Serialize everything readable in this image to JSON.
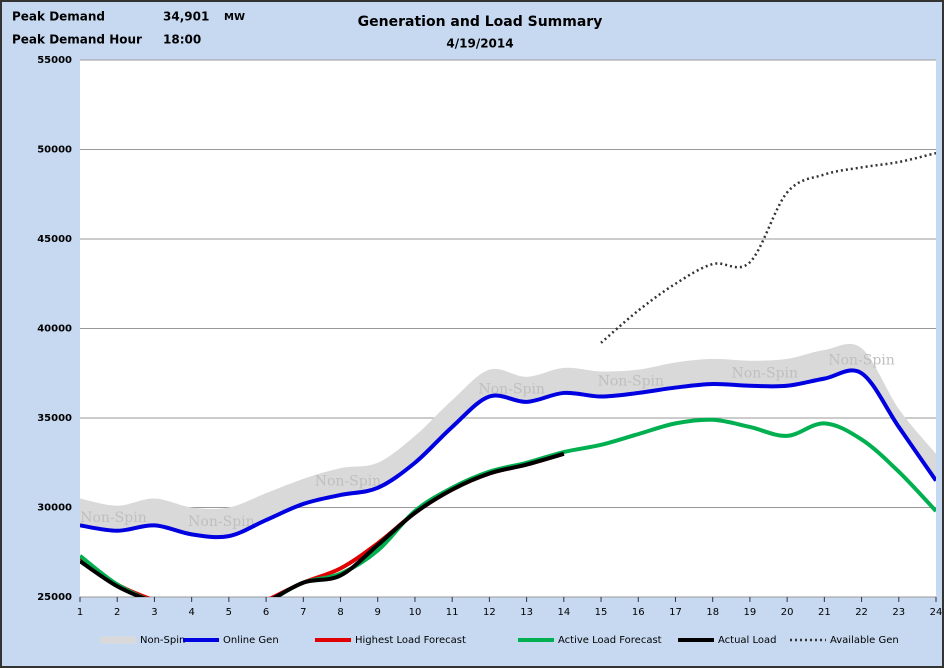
{
  "header": {
    "peak_demand_label": "Peak Demand",
    "peak_demand_value": "34,901",
    "peak_demand_unit": "MW",
    "peak_hour_label": "Peak Demand Hour",
    "peak_hour_value": "18:00"
  },
  "chart_data": {
    "type": "line",
    "title": "Generation and Load Summary",
    "subtitle": "4/19/2014",
    "x": [
      1,
      2,
      3,
      4,
      5,
      6,
      7,
      8,
      9,
      10,
      11,
      12,
      13,
      14,
      15,
      16,
      17,
      18,
      19,
      20,
      21,
      22,
      23,
      24
    ],
    "xlim": [
      1,
      24
    ],
    "xticks": [
      1,
      2,
      3,
      4,
      5,
      6,
      7,
      8,
      9,
      10,
      11,
      12,
      13,
      14,
      15,
      16,
      17,
      18,
      19,
      20,
      21,
      22,
      23,
      24
    ],
    "ylim": [
      25000,
      55000
    ],
    "yticks": [
      25000,
      30000,
      35000,
      40000,
      45000,
      50000,
      55000
    ],
    "grid": true,
    "legend": "bottom",
    "series": [
      {
        "name": "Non-Spin",
        "color": "#d9d9d9",
        "values": [
          30500,
          30100,
          30500,
          30000,
          30000,
          30800,
          31600,
          32200,
          32500,
          34000,
          36000,
          37700,
          37300,
          37800,
          37600,
          37700,
          38100,
          38300,
          38200,
          38300,
          38800,
          38900,
          35500,
          33000
        ]
      },
      {
        "name": "Online Gen",
        "color": "#0000e0",
        "values": [
          29000,
          28700,
          29000,
          28500,
          28400,
          29300,
          30200,
          30700,
          31100,
          32500,
          34500,
          36200,
          35900,
          36400,
          36200,
          36400,
          36700,
          36900,
          36800,
          36800,
          37200,
          37500,
          34500,
          31500
        ]
      },
      {
        "name": "Highest Load Forecast",
        "color": "#e00000",
        "values": [
          27200,
          25700,
          24800,
          24000,
          23800,
          24800,
          25800,
          26600,
          28000,
          29700,
          31000,
          31900,
          32400,
          33000,
          null,
          null,
          null,
          null,
          null,
          null,
          null,
          null,
          null,
          null
        ]
      },
      {
        "name": "Active Load Forecast",
        "color": "#00b050",
        "values": [
          27300,
          25700,
          24700,
          24000,
          23800,
          24700,
          25800,
          26300,
          27600,
          29800,
          31100,
          32000,
          32500,
          33100,
          33500,
          34100,
          34700,
          34900,
          34500,
          34000,
          34700,
          33800,
          32000,
          29800
        ]
      },
      {
        "name": "Actual Load",
        "color": "#000000",
        "values": [
          27000,
          25600,
          24700,
          24000,
          23800,
          24700,
          25800,
          26200,
          27900,
          29700,
          31000,
          31900,
          32400,
          33000,
          null,
          null,
          null,
          null,
          null,
          null,
          null,
          null,
          null,
          null
        ]
      },
      {
        "name": "Available Gen",
        "color": "#333333",
        "dashed": true,
        "values": [
          null,
          null,
          null,
          null,
          null,
          null,
          null,
          null,
          null,
          null,
          null,
          null,
          null,
          null,
          39200,
          41000,
          42500,
          43600,
          43700,
          47600,
          48600,
          49000,
          49300,
          49800
        ]
      }
    ]
  }
}
